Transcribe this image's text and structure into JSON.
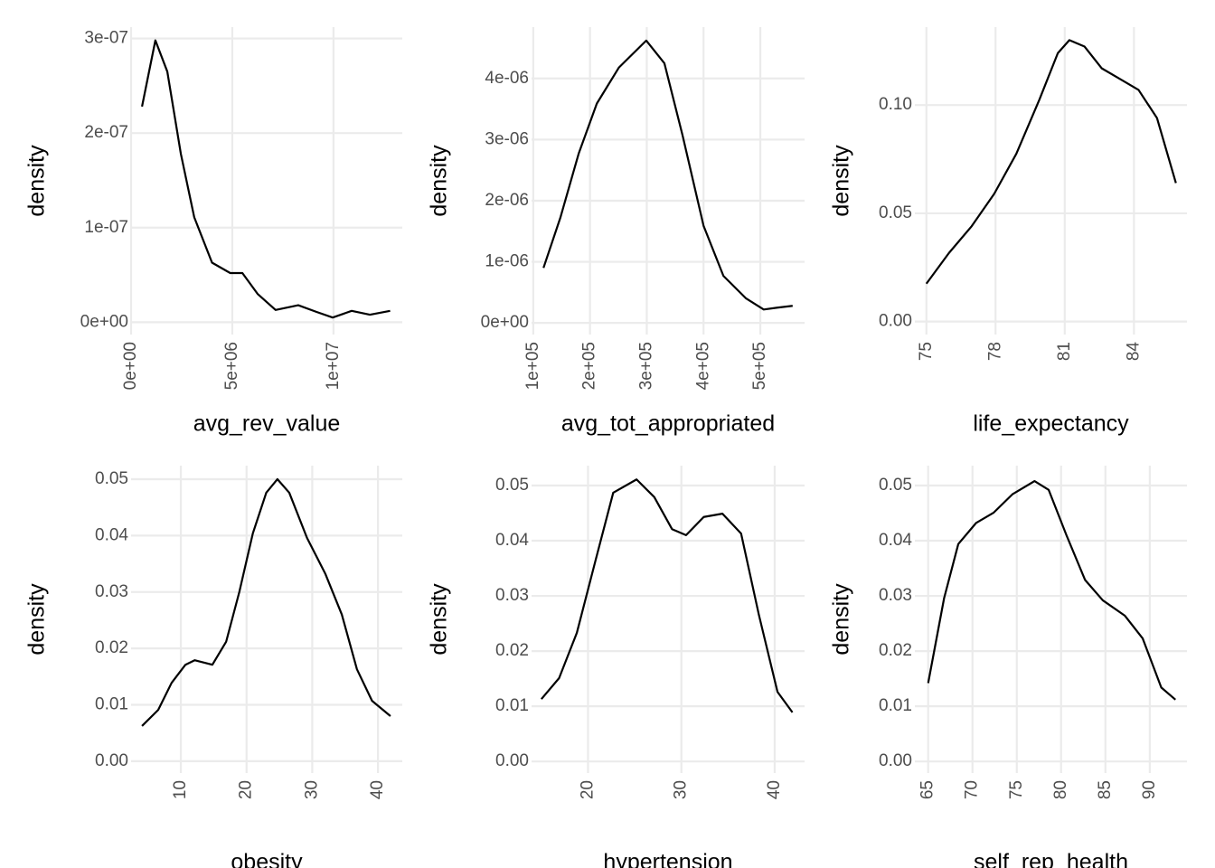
{
  "chart_data": [
    {
      "type": "line",
      "x_label": "avg_rev_value",
      "y_label": "density",
      "color": "#000000",
      "grid": true,
      "x": [
        540000,
        1200000,
        1790000,
        2460000,
        3120000,
        4000000,
        4900000,
        5500000,
        6250000,
        7140000,
        8260000,
        9150000,
        9960000,
        10900000,
        11800000,
        12800000
      ],
      "values": [
        2.28e-07,
        2.98e-07,
        2.65e-07,
        1.78e-07,
        1.11e-07,
        6.3e-08,
        5.2e-08,
        5.2e-08,
        3e-08,
        1.3e-08,
        1.8e-08,
        1.1e-08,
        5e-09,
        1.2e-08,
        8e-09,
        1.2e-08
      ],
      "xlim": [
        0,
        13400000
      ],
      "ylim": [
        -1.3e-08,
        3.12e-07
      ],
      "xticks": [
        {
          "value": 0,
          "label": "0e+00"
        },
        {
          "value": 5000000,
          "label": "5e+06"
        },
        {
          "value": 10000000,
          "label": "1e+07"
        }
      ],
      "yticks": [
        {
          "value": 0,
          "label": "0e+00"
        },
        {
          "value": 1e-07,
          "label": "1e-07"
        },
        {
          "value": 2e-07,
          "label": "2e-07"
        },
        {
          "value": 3e-07,
          "label": "3e-07"
        }
      ]
    },
    {
      "type": "line",
      "x_label": "avg_tot_appropriated",
      "y_label": "density",
      "color": "#000000",
      "grid": true,
      "x": [
        118000,
        148000,
        180000,
        212000,
        251000,
        299000,
        331000,
        363000,
        400000,
        435000,
        475000,
        506000,
        530000,
        557000
      ],
      "values": [
        9e-07,
        1.73e-06,
        2.77e-06,
        3.59e-06,
        4.18e-06,
        4.62e-06,
        4.25e-06,
        3.07e-06,
        1.59e-06,
        7.7e-07,
        4e-07,
        2.2e-07,
        2.5e-07,
        2.8e-07
      ],
      "xlim": [
        97000,
        578000
      ],
      "ylim": [
        -1.9e-07,
        4.84e-06
      ],
      "xticks": [
        {
          "value": 100000,
          "label": "1e+05"
        },
        {
          "value": 200000,
          "label": "2e+05"
        },
        {
          "value": 300000,
          "label": "3e+05"
        },
        {
          "value": 400000,
          "label": "4e+05"
        },
        {
          "value": 500000,
          "label": "5e+05"
        }
      ],
      "yticks": [
        {
          "value": 0,
          "label": "0e+00"
        },
        {
          "value": 1e-06,
          "label": "1e-06"
        },
        {
          "value": 2e-06,
          "label": "2e-06"
        },
        {
          "value": 3e-06,
          "label": "3e-06"
        },
        {
          "value": 4e-06,
          "label": "4e-06"
        }
      ]
    },
    {
      "type": "line",
      "x_label": "life_expectancy",
      "y_label": "density",
      "color": "#000000",
      "grid": true,
      "x": [
        75.0,
        75.98,
        76.96,
        77.94,
        78.9,
        79.9,
        80.7,
        81.2,
        81.86,
        82.6,
        83.4,
        84.2,
        85.0,
        85.82
      ],
      "values": [
        0.0175,
        0.0317,
        0.044,
        0.059,
        0.0775,
        0.1025,
        0.124,
        0.13,
        0.127,
        0.117,
        0.112,
        0.107,
        0.094,
        0.064
      ],
      "xlim": [
        74.5,
        86.3
      ],
      "ylim": [
        -0.006,
        0.136
      ],
      "xticks": [
        75,
        78,
        81,
        84
      ],
      "yticks": [
        {
          "value": 0,
          "label": "0.00"
        },
        0.05,
        {
          "value": 0.1,
          "label": "0.10"
        }
      ]
    },
    {
      "type": "line",
      "x_label": "obesity",
      "y_label": "density",
      "color": "#000000",
      "grid": true,
      "x": [
        4.09,
        6.56,
        8.6,
        10.7,
        12.1,
        14.8,
        16.9,
        18.9,
        20.96,
        23.0,
        24.7,
        26.5,
        29.2,
        32.0,
        34.5,
        36.8,
        39.1,
        41.9
      ],
      "values": [
        0.00625,
        0.0091,
        0.0139,
        0.0171,
        0.0179,
        0.0171,
        0.0212,
        0.03,
        0.0404,
        0.0476,
        0.05,
        0.0476,
        0.0396,
        0.0332,
        0.026,
        0.0163,
        0.0107,
        0.008
      ],
      "xlim": [
        2.43,
        43.7
      ],
      "ylim": [
        -0.0021,
        0.0524
      ],
      "xticks": [
        10,
        20,
        30,
        40
      ],
      "yticks": [
        {
          "value": 0,
          "label": "0.00"
        },
        0.01,
        0.02,
        0.03,
        0.04,
        0.05
      ]
    },
    {
      "type": "line",
      "x_label": "hypertension",
      "y_label": "density",
      "color": "#000000",
      "grid": true,
      "x": [
        15.0,
        16.9,
        18.8,
        20.8,
        22.7,
        25.2,
        27.1,
        29.0,
        30.5,
        32.4,
        34.4,
        36.4,
        38.3,
        40.3,
        41.9
      ],
      "values": [
        0.0113,
        0.0151,
        0.0233,
        0.0364,
        0.0487,
        0.0511,
        0.0479,
        0.0421,
        0.041,
        0.0443,
        0.0449,
        0.0413,
        0.0266,
        0.0126,
        0.0089
      ],
      "xlim": [
        13.95,
        43.2
      ],
      "ylim": [
        -0.0021,
        0.0536
      ],
      "xticks": [
        20,
        30,
        40
      ],
      "yticks": [
        {
          "value": 0,
          "label": "0.00"
        },
        0.01,
        0.02,
        0.03,
        0.04,
        0.05
      ]
    },
    {
      "type": "line",
      "x_label": "self_rep_health",
      "y_label": "density",
      "color": "#000000",
      "grid": true,
      "x": [
        65.0,
        66.8,
        68.4,
        70.4,
        72.4,
        74.5,
        77.0,
        78.6,
        80.6,
        82.7,
        84.7,
        87.2,
        89.2,
        91.3,
        92.9
      ],
      "values": [
        0.0142,
        0.0296,
        0.0394,
        0.0432,
        0.0451,
        0.0484,
        0.0508,
        0.0492,
        0.041,
        0.0329,
        0.0292,
        0.0264,
        0.0223,
        0.0134,
        0.0112
      ],
      "xlim": [
        63.5,
        94.2
      ],
      "ylim": [
        -0.0021,
        0.0536
      ],
      "xticks": [
        65,
        70,
        75,
        80,
        85,
        90
      ],
      "yticks": [
        {
          "value": 0,
          "label": "0.00"
        },
        0.01,
        0.02,
        0.03,
        0.04,
        0.05
      ]
    }
  ]
}
